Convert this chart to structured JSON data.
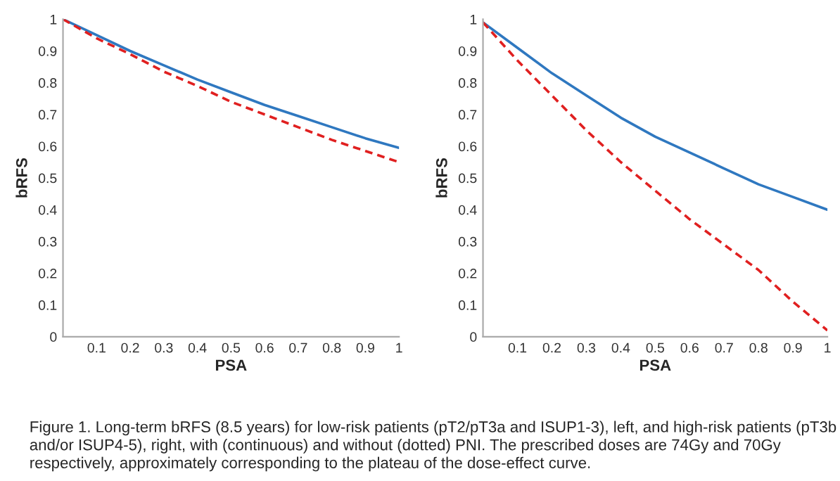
{
  "chart_data": [
    {
      "type": "line",
      "xlabel": "PSA",
      "ylabel": "bRFS",
      "xlim": [
        0,
        1
      ],
      "ylim": [
        0,
        1
      ],
      "xticks": [
        0.1,
        0.2,
        0.3,
        0.4,
        0.5,
        0.6,
        0.7,
        0.8,
        0.9,
        1
      ],
      "yticks": [
        0,
        0.1,
        0.2,
        0.3,
        0.4,
        0.5,
        0.6,
        0.7,
        0.8,
        0.9,
        1
      ],
      "x": [
        0,
        0.1,
        0.2,
        0.3,
        0.4,
        0.5,
        0.6,
        0.7,
        0.8,
        0.9,
        1
      ],
      "grid": false,
      "legend": false,
      "series": [
        {
          "color": "#2f78c0",
          "line_style": "solid",
          "values": [
            1,
            0.95,
            0.9,
            0.855,
            0.81,
            0.77,
            0.73,
            0.695,
            0.66,
            0.625,
            0.595
          ]
        },
        {
          "color": "#e02020",
          "line_style": "dashed",
          "values": [
            1,
            0.94,
            0.89,
            0.835,
            0.79,
            0.74,
            0.7,
            0.66,
            0.62,
            0.585,
            0.55
          ]
        }
      ]
    },
    {
      "type": "line",
      "xlabel": "PSA",
      "ylabel": "bRFS",
      "xlim": [
        0,
        1
      ],
      "ylim": [
        0,
        1
      ],
      "xticks": [
        0.1,
        0.2,
        0.3,
        0.4,
        0.5,
        0.6,
        0.7,
        0.8,
        0.9,
        1
      ],
      "yticks": [
        0,
        0.1,
        0.2,
        0.3,
        0.4,
        0.5,
        0.6,
        0.7,
        0.8,
        0.9,
        1
      ],
      "x": [
        0,
        0.1,
        0.2,
        0.3,
        0.4,
        0.5,
        0.6,
        0.7,
        0.8,
        0.9,
        1
      ],
      "grid": false,
      "legend": false,
      "series": [
        {
          "color": "#2f78c0",
          "line_style": "solid",
          "values": [
            0.99,
            0.91,
            0.83,
            0.76,
            0.69,
            0.63,
            0.58,
            0.53,
            0.48,
            0.44,
            0.4
          ]
        },
        {
          "color": "#e02020",
          "line_style": "dashed",
          "values": [
            0.99,
            0.87,
            0.76,
            0.65,
            0.55,
            0.46,
            0.37,
            0.29,
            0.21,
            0.11,
            0.02
          ]
        }
      ],
      "annotations": [
        "Figure 1. Long-term bRFS (8.5 years) for low-risk patients (pT2/pT3a and ISUP1-3), left, and high-risk patients (pT3b and/or ISUP4-5), right, with (continuous) and without (dotted) PNI. The prescribed doses are 74Gy and 70Gy respectively, approximately corresponding to the plateau of the dose-effect curve."
      ]
    }
  ]
}
